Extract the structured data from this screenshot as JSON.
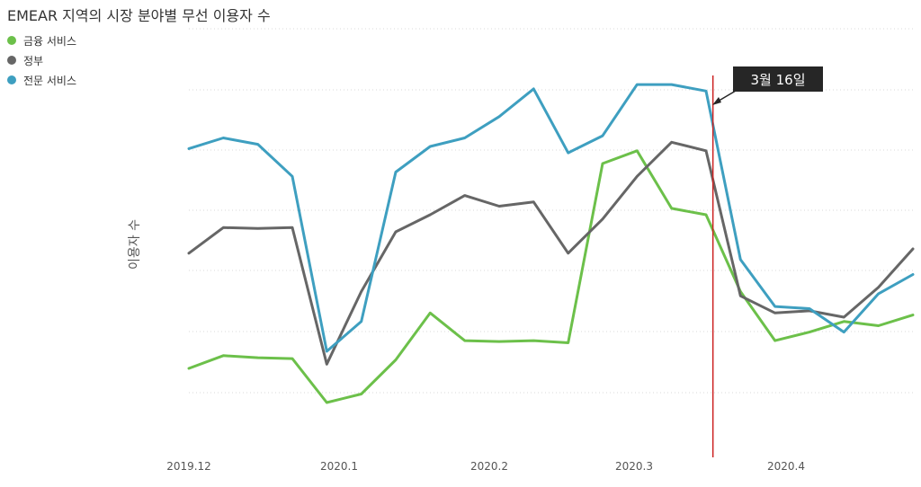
{
  "chart_data": {
    "type": "line",
    "title": "EMEAR 지역의 시장 분야별 무선 이용자 수",
    "ylabel": "이용자 수",
    "xlabel": "",
    "y_ticks_shown": false,
    "grid": "horizontal dotted",
    "legend_position": "top-left",
    "x_tick_labels": [
      "2019.12",
      "2020.1",
      "2020.2",
      "2020.3",
      "2020.4"
    ],
    "points_per_series": 22,
    "ylim": [
      0,
      100
    ],
    "series": [
      {
        "name": "금융 서비스",
        "color": "#6cc04a",
        "values": [
          20,
          23,
          22.5,
          22.3,
          12,
          14,
          22,
          33,
          26.5,
          26.3,
          26.5,
          26,
          68,
          71,
          57.5,
          56,
          38,
          26.5,
          28.5,
          31,
          30,
          32.5
        ]
      },
      {
        "name": "정부",
        "color": "#666666",
        "values": [
          47,
          53,
          52.8,
          53,
          21,
          38,
          52,
          56,
          60.5,
          58,
          59,
          47,
          55,
          65,
          73,
          71,
          37,
          33,
          33.5,
          32,
          39,
          48
        ]
      },
      {
        "name": "전문 서비스",
        "color": "#3e9fc0",
        "values": [
          71.5,
          74,
          72.5,
          65,
          24,
          31,
          66,
          72,
          74,
          79,
          85.5,
          70.5,
          74.5,
          86.5,
          86.5,
          85,
          45.5,
          34.5,
          34,
          28.5,
          37.5,
          42
        ]
      }
    ],
    "annotation": {
      "label": "3월 16일",
      "marker_line_color": "#cc2222",
      "marker_position_index": 15.2
    }
  }
}
